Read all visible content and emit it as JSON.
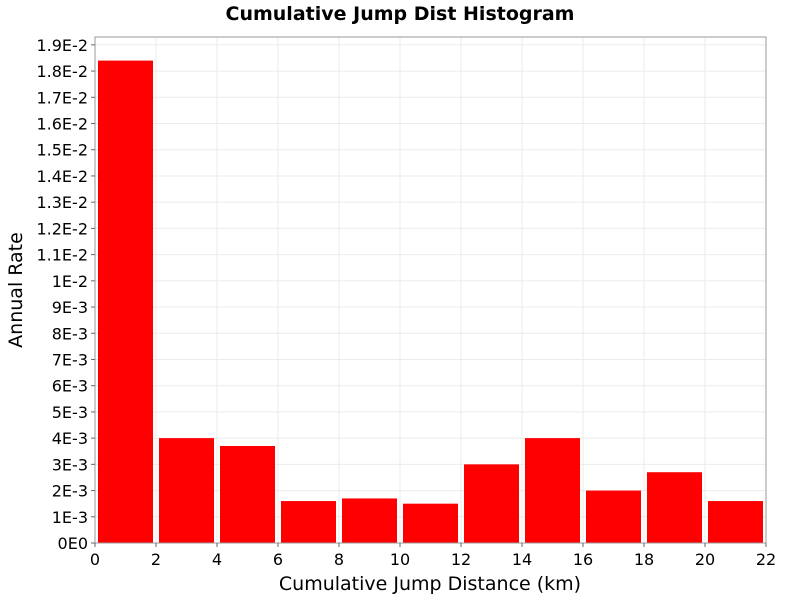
{
  "chart_data": {
    "type": "bar",
    "title": "Cumulative Jump Dist Histogram",
    "xlabel": "Cumulative Jump Distance (km)",
    "ylabel": "Annual Rate",
    "xlim": [
      0,
      22
    ],
    "ylim": [
      0,
      0.0193
    ],
    "x_ticks": [
      0,
      2,
      4,
      6,
      8,
      10,
      12,
      14,
      16,
      18,
      20,
      22
    ],
    "x_tick_labels": [
      "0",
      "2",
      "4",
      "6",
      "8",
      "10",
      "12",
      "14",
      "16",
      "18",
      "20",
      "22"
    ],
    "y_ticks": [
      0,
      0.001,
      0.002,
      0.003,
      0.004,
      0.005,
      0.006,
      0.007,
      0.008,
      0.009,
      0.01,
      0.011,
      0.012,
      0.013,
      0.014,
      0.015,
      0.016,
      0.017,
      0.018,
      0.019
    ],
    "y_tick_labels": [
      "0E0",
      "1E-3",
      "2E-3",
      "3E-3",
      "4E-3",
      "5E-3",
      "6E-3",
      "7E-3",
      "8E-3",
      "9E-3",
      "1E-2",
      "1.1E-2",
      "1.2E-2",
      "1.3E-2",
      "1.4E-2",
      "1.5E-2",
      "1.6E-2",
      "1.7E-2",
      "1.8E-2",
      "1.9E-2"
    ],
    "bin_width": 2,
    "bins": [
      {
        "x_start": 0,
        "x_end": 2,
        "value": 0.0184
      },
      {
        "x_start": 2,
        "x_end": 4,
        "value": 0.004
      },
      {
        "x_start": 4,
        "x_end": 6,
        "value": 0.0037
      },
      {
        "x_start": 6,
        "x_end": 8,
        "value": 0.0016
      },
      {
        "x_start": 8,
        "x_end": 10,
        "value": 0.0017
      },
      {
        "x_start": 10,
        "x_end": 12,
        "value": 0.0015
      },
      {
        "x_start": 12,
        "x_end": 14,
        "value": 0.003
      },
      {
        "x_start": 14,
        "x_end": 16,
        "value": 0.004
      },
      {
        "x_start": 16,
        "x_end": 18,
        "value": 0.002
      },
      {
        "x_start": 18,
        "x_end": 20,
        "value": 0.0027
      },
      {
        "x_start": 20,
        "x_end": 22,
        "value": 0.0016
      }
    ],
    "bar_color": "#ff0000",
    "grid": true,
    "grid_color": "#ebebeb",
    "background": "#ffffff",
    "legend": "none"
  }
}
